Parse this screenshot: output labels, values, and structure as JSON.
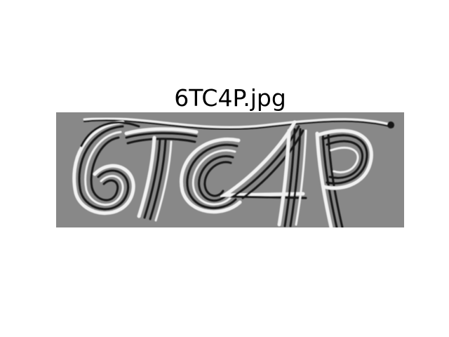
{
  "figure": {
    "title": "6TC4P.jpg",
    "image": {
      "description_chars": [
        "6",
        "T",
        "C",
        "4",
        "P"
      ],
      "background_color": "#888888",
      "stroke_dark": "#141414",
      "stroke_light": "#f2f2f2"
    }
  }
}
